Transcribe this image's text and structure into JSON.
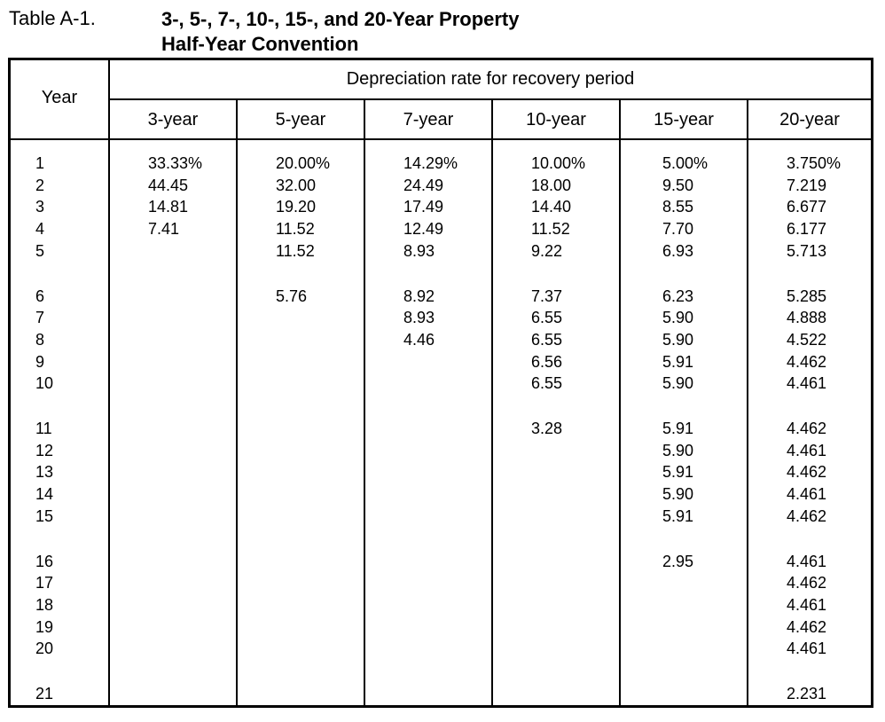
{
  "caption": {
    "label": "Table A-1.",
    "title_line1": "3-, 5-, 7-, 10-, 15-, and 20-Year Property",
    "title_line2": "Half-Year Convention"
  },
  "header": {
    "year_label": "Year",
    "group_label": "Depreciation rate for recovery period",
    "columns": [
      "3-year",
      "5-year",
      "7-year",
      "10-year",
      "15-year",
      "20-year"
    ]
  },
  "chart_data": {
    "type": "table",
    "title": "3-, 5-, 7-, 10-, 15-, and 20-Year Property Half-Year Convention",
    "columns": [
      "Year",
      "3-year",
      "5-year",
      "7-year",
      "10-year",
      "15-year",
      "20-year"
    ],
    "rows": [
      [
        "1",
        "33.33%",
        "20.00%",
        "14.29%",
        "10.00%",
        "5.00%",
        "3.750%"
      ],
      [
        "2",
        "44.45",
        "32.00",
        "24.49",
        "18.00",
        "9.50",
        "7.219"
      ],
      [
        "3",
        "14.81",
        "19.20",
        "17.49",
        "14.40",
        "8.55",
        "6.677"
      ],
      [
        "4",
        "7.41",
        "11.52",
        "12.49",
        "11.52",
        "7.70",
        "6.177"
      ],
      [
        "5",
        "",
        "11.52",
        "8.93",
        "9.22",
        "6.93",
        "5.713"
      ],
      [
        "6",
        "",
        "5.76",
        "8.92",
        "7.37",
        "6.23",
        "5.285"
      ],
      [
        "7",
        "",
        "",
        "8.93",
        "6.55",
        "5.90",
        "4.888"
      ],
      [
        "8",
        "",
        "",
        "4.46",
        "6.55",
        "5.90",
        "4.522"
      ],
      [
        "9",
        "",
        "",
        "",
        "6.56",
        "5.91",
        "4.462"
      ],
      [
        "10",
        "",
        "",
        "",
        "6.55",
        "5.90",
        "4.461"
      ],
      [
        "11",
        "",
        "",
        "",
        "3.28",
        "5.91",
        "4.462"
      ],
      [
        "12",
        "",
        "",
        "",
        "",
        "5.90",
        "4.461"
      ],
      [
        "13",
        "",
        "",
        "",
        "",
        "5.91",
        "4.462"
      ],
      [
        "14",
        "",
        "",
        "",
        "",
        "5.90",
        "4.461"
      ],
      [
        "15",
        "",
        "",
        "",
        "",
        "5.91",
        "4.462"
      ],
      [
        "16",
        "",
        "",
        "",
        "",
        "2.95",
        "4.461"
      ],
      [
        "17",
        "",
        "",
        "",
        "",
        "",
        "4.462"
      ],
      [
        "18",
        "",
        "",
        "",
        "",
        "",
        "4.461"
      ],
      [
        "19",
        "",
        "",
        "",
        "",
        "",
        "4.462"
      ],
      [
        "20",
        "",
        "",
        "",
        "",
        "",
        "4.461"
      ],
      [
        "21",
        "",
        "",
        "",
        "",
        "",
        "2.231"
      ]
    ]
  }
}
